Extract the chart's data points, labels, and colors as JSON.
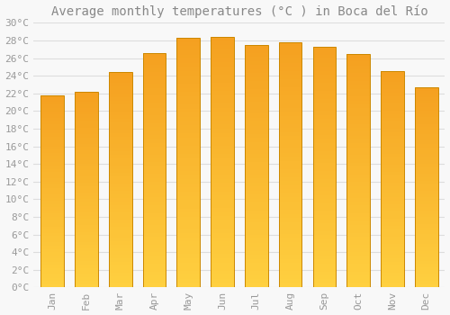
{
  "title": "Average monthly temperatures (°C ) in Boca del Río",
  "months": [
    "Jan",
    "Feb",
    "Mar",
    "Apr",
    "May",
    "Jun",
    "Jul",
    "Aug",
    "Sep",
    "Oct",
    "Nov",
    "Dec"
  ],
  "values": [
    21.8,
    22.2,
    24.4,
    26.6,
    28.3,
    28.4,
    27.5,
    27.8,
    27.3,
    26.5,
    24.5,
    22.7
  ],
  "bar_color_bottom": "#FFD040",
  "bar_color_top": "#F5A020",
  "bar_edge_color": "#CC8800",
  "ylim": [
    0,
    30
  ],
  "yticks": [
    0,
    2,
    4,
    6,
    8,
    10,
    12,
    14,
    16,
    18,
    20,
    22,
    24,
    26,
    28,
    30
  ],
  "ytick_labels": [
    "0°C",
    "2°C",
    "4°C",
    "6°C",
    "8°C",
    "10°C",
    "12°C",
    "14°C",
    "16°C",
    "18°C",
    "20°C",
    "22°C",
    "24°C",
    "26°C",
    "28°C",
    "30°C"
  ],
  "background_color": "#f8f8f8",
  "grid_color": "#dddddd",
  "title_fontsize": 10,
  "tick_fontsize": 8,
  "font_family": "monospace"
}
